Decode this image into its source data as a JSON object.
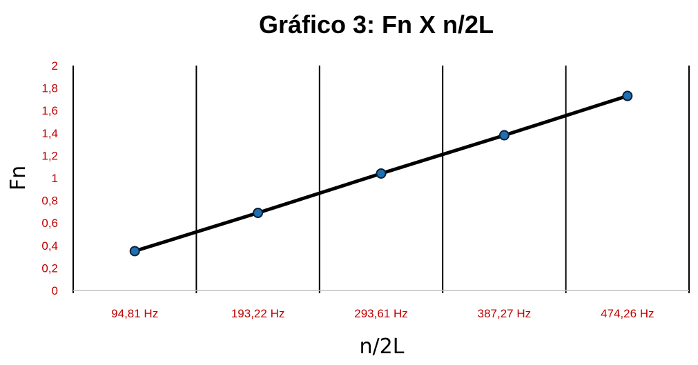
{
  "chart_data": {
    "type": "line",
    "title": "Gráfico 3: Fn X n/2L",
    "xlabel": "n/2L",
    "ylabel": "Fn",
    "categories": [
      "94,81 Hz",
      "193,22 Hz",
      "293,61 Hz",
      "387,27 Hz",
      "474,26 Hz"
    ],
    "series": [
      {
        "values": [
          0.35,
          0.69,
          1.04,
          1.38,
          1.73
        ]
      }
    ],
    "ylim": [
      0,
      2
    ],
    "yticks": [
      0,
      0.2,
      0.4,
      0.6,
      0.8,
      1,
      1.2,
      1.4,
      1.6,
      1.8,
      2
    ],
    "ytick_labels": [
      "0",
      "0,2",
      "0,4",
      "0,6",
      "0,8",
      "1",
      "1,2",
      "1,4",
      "1,6",
      "1,8",
      "2"
    ],
    "grid": "vertical",
    "legend": "none",
    "colors": {
      "line": "#000000",
      "marker_fill": "#1f6fb2",
      "marker_stroke": "#0b1f33",
      "tick_labels": "#c00000",
      "gridlines": "#000000",
      "baseline": "#bfbfbf"
    }
  }
}
